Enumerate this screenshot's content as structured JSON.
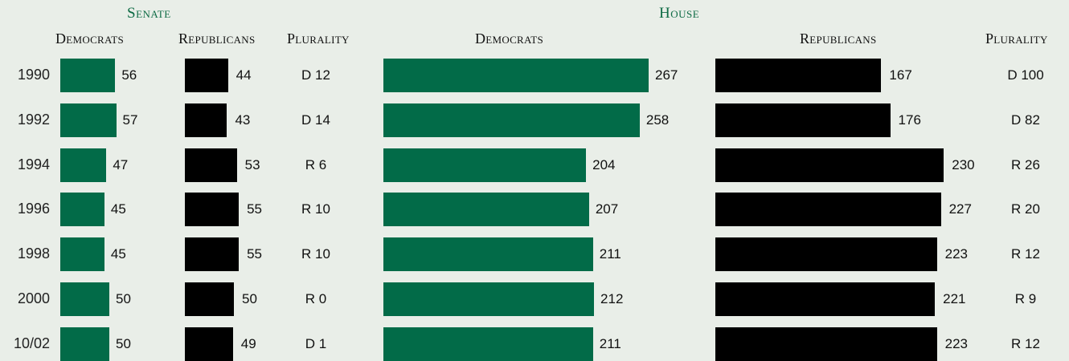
{
  "colors": {
    "democrat": "#026b48",
    "republican": "#000000",
    "background": "#e9eee8",
    "title": "#0e6b45"
  },
  "headers": {
    "senate": "Senate",
    "house": "House",
    "senate_dem": "Democrats",
    "senate_rep": "Republicans",
    "senate_plur": "Plurality",
    "house_dem": "Democrats",
    "house_rep": "Republicans",
    "house_plur": "Plurality"
  },
  "chart_data": {
    "type": "bar",
    "categories": [
      "1990",
      "1992",
      "1994",
      "1996",
      "1998",
      "2000",
      "10/02"
    ],
    "senate": {
      "series": [
        {
          "values": [
            56,
            57,
            47,
            45,
            45,
            50,
            50
          ]
        },
        {
          "values": [
            44,
            43,
            53,
            55,
            55,
            50,
            49
          ]
        }
      ],
      "plurality": [
        "D 12",
        "D 14",
        "R 6",
        "R 10",
        "R 10",
        "R 0",
        "D 1"
      ]
    },
    "house": {
      "series": [
        {
          "values": [
            267,
            258,
            204,
            207,
            211,
            212,
            211
          ]
        },
        {
          "values": [
            167,
            176,
            230,
            227,
            223,
            221,
            223
          ]
        }
      ],
      "plurality": [
        "D 100",
        "D 82",
        "R 26",
        "R 20",
        "R 12",
        "R 9",
        "R 12"
      ]
    }
  }
}
